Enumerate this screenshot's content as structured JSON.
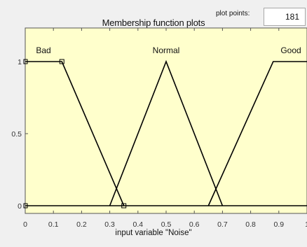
{
  "window": {
    "title": "Membership function plots"
  },
  "plot_points": {
    "label": "plot points:",
    "value": "181"
  },
  "chart_data": {
    "type": "line",
    "title": "Membership function plots",
    "xlabel": "input variable \"Noise\"",
    "ylabel": "",
    "xlim": [
      0,
      1
    ],
    "ylim": [
      0,
      1
    ],
    "x_ticks": [
      "0",
      "0.1",
      "0.2",
      "0.3",
      "0.4",
      "0.5",
      "0.6",
      "0.7",
      "0.8",
      "0.9",
      "1"
    ],
    "y_ticks": [
      "0",
      "0.5",
      "1"
    ],
    "series": [
      {
        "name": "Bad",
        "x": [
          0,
          0.13,
          0.35
        ],
        "y": [
          1,
          1,
          0
        ],
        "selected": true
      },
      {
        "name": "Normal",
        "x": [
          0.3,
          0.5,
          0.7
        ],
        "y": [
          0,
          1,
          0
        ]
      },
      {
        "name": "Good",
        "x": [
          0.65,
          0.88,
          1
        ],
        "y": [
          0,
          1,
          1
        ]
      }
    ],
    "colors": {
      "background": "#ffffcc",
      "axis": "#555555",
      "line": "#000000"
    }
  }
}
